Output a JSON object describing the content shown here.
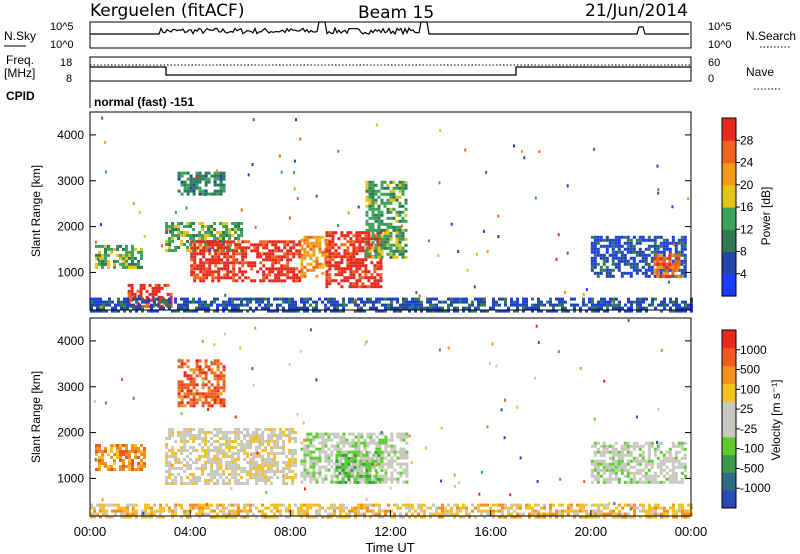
{
  "header": {
    "title": "Kerguelen (fitACF)",
    "beam": "Beam 15",
    "date": "21/Jun/2014"
  },
  "params": {
    "nsky_label": "N.Sky",
    "nsearch_label": "N.Search",
    "nsky_ticks": [
      "10^5",
      "10^0"
    ],
    "freq_label_1": "Freq.",
    "freq_label_2": "[MHz]",
    "freq_ticks": [
      "18",
      "8"
    ],
    "nave_label": "Nave",
    "nave_ticks": [
      "60",
      "0"
    ],
    "cpid_label": "CPID",
    "cpid_text": "normal (fast) -151"
  },
  "colors": {
    "power": [
      "#1a3cff",
      "#2146a8",
      "#2e7a55",
      "#3aa35a",
      "#e6c316",
      "#f29a18",
      "#f0641e",
      "#e8281e"
    ],
    "velocity": [
      "#2a4ab8",
      "#2e6a8a",
      "#3a9a4a",
      "#5ccc2e",
      "#c8c8be",
      "#c8c8be",
      "#f5c020",
      "#f5901e",
      "#f05a1e",
      "#e82a1e"
    ]
  },
  "chart_data": [
    {
      "type": "heatmap",
      "title": "Power",
      "xlabel": "",
      "ylabel": "Slant Range [km]",
      "x_range": [
        "00:00",
        "24:00"
      ],
      "ylim": [
        180,
        4500
      ],
      "y_ticks": [
        "1000",
        "2000",
        "3000",
        "4000"
      ],
      "colorbar_label": "Power [dB]",
      "colorbar_ticks": [
        "4",
        "8",
        "12",
        "16",
        "20",
        "24",
        "28"
      ],
      "regions": [
        {
          "t": [
            0.2,
            2.0
          ],
          "r": [
            1100,
            1600
          ],
          "level": 3
        },
        {
          "t": [
            1.5,
            3.2
          ],
          "r": [
            280,
            750
          ],
          "level": 7
        },
        {
          "t": [
            3.0,
            6.0
          ],
          "r": [
            1500,
            2100
          ],
          "level": 3
        },
        {
          "t": [
            4.0,
            8.4
          ],
          "r": [
            800,
            1700
          ],
          "level": 7
        },
        {
          "t": [
            8.4,
            9.5
          ],
          "r": [
            900,
            1800
          ],
          "level": 5
        },
        {
          "t": [
            9.4,
            11.6
          ],
          "r": [
            700,
            1900
          ],
          "level": 7
        },
        {
          "t": [
            11.0,
            12.6
          ],
          "r": [
            1300,
            3000
          ],
          "level": 3
        },
        {
          "t": [
            3.5,
            5.3
          ],
          "r": [
            2700,
            3200
          ],
          "level": 2
        },
        {
          "t": [
            20.0,
            23.8
          ],
          "r": [
            900,
            1800
          ],
          "level": 1
        },
        {
          "t": [
            22.5,
            23.5
          ],
          "r": [
            900,
            1400
          ],
          "level": 6
        },
        {
          "t": [
            0.0,
            24.0
          ],
          "r": [
            180,
            450
          ],
          "level": 1
        }
      ]
    },
    {
      "type": "heatmap",
      "title": "Velocity",
      "xlabel": "Time UT",
      "ylabel": "Slant Range [km]",
      "x_range": [
        "00:00",
        "24:00"
      ],
      "x_ticks": [
        "00:00",
        "04:00",
        "08:00",
        "12:00",
        "16:00",
        "20:00",
        "00:00"
      ],
      "ylim": [
        180,
        4500
      ],
      "y_ticks": [
        "1000",
        "2000",
        "3000",
        "4000"
      ],
      "colorbar_label": "Velocity [m s⁻¹]",
      "colorbar_ticks": [
        "1000",
        "500",
        "100",
        "25",
        "-25",
        "-100",
        "-500",
        "-1000"
      ],
      "regions": [
        {
          "t": [
            0.2,
            2.2
          ],
          "r": [
            1200,
            1750
          ],
          "level": 7
        },
        {
          "t": [
            3.0,
            8.2
          ],
          "r": [
            900,
            2100
          ],
          "level": 5
        },
        {
          "t": [
            8.4,
            12.6
          ],
          "r": [
            900,
            2000
          ],
          "level": 4
        },
        {
          "t": [
            9.8,
            11.6
          ],
          "r": [
            900,
            1600
          ],
          "level": 3
        },
        {
          "t": [
            3.5,
            5.3
          ],
          "r": [
            2600,
            3600
          ],
          "level": 8
        },
        {
          "t": [
            20.0,
            23.8
          ],
          "r": [
            900,
            1800
          ],
          "level": 4
        },
        {
          "t": [
            0.0,
            24.0
          ],
          "r": [
            180,
            450
          ],
          "level": 6
        }
      ]
    }
  ]
}
